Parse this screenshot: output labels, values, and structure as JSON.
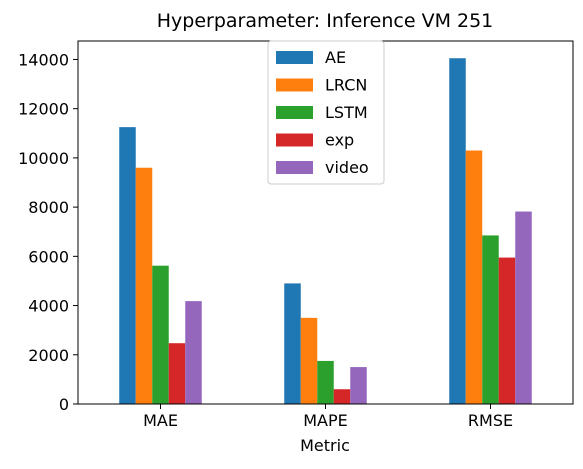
{
  "chart_data": {
    "type": "bar",
    "title": "Hyperparameter: Inference VM 251",
    "xlabel": "Metric",
    "ylabel": "",
    "categories": [
      "MAE",
      "MAPE",
      "RMSE"
    ],
    "yticks": [
      0,
      2000,
      4000,
      6000,
      8000,
      10000,
      12000,
      14000
    ],
    "ylim": [
      0,
      14750
    ],
    "grid": false,
    "legend_position": "top-center",
    "series": [
      {
        "name": "AE",
        "color": "#1f77b4",
        "values": [
          11250,
          4900,
          14050
        ]
      },
      {
        "name": "LRCN",
        "color": "#ff7f0e",
        "values": [
          9600,
          3500,
          10300
        ]
      },
      {
        "name": "LSTM",
        "color": "#2ca02c",
        "values": [
          5620,
          1750,
          6850
        ]
      },
      {
        "name": "exp",
        "color": "#d62728",
        "values": [
          2470,
          600,
          5950
        ]
      },
      {
        "name": "video",
        "color": "#9467bd",
        "values": [
          4180,
          1500,
          7820
        ]
      }
    ]
  }
}
